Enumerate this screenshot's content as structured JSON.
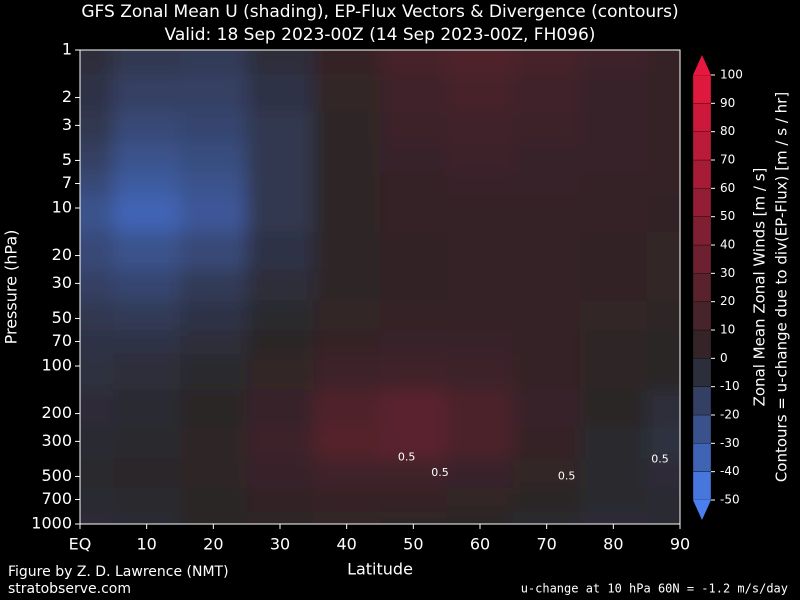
{
  "chart_data": {
    "type": "heatmap",
    "title": "GFS Zonal Mean U (shading), EP-Flux Vectors & Divergence (contours)",
    "subtitle": "Valid: 18 Sep 2023-00Z  (14 Sep 2023-00Z, FH096)",
    "x_label": "Latitude",
    "y_label": "Pressure (hPa)",
    "log_y": true,
    "xlim": [
      0,
      90
    ],
    "xticks": [
      {
        "value": 0,
        "label": "EQ"
      },
      10,
      20,
      30,
      40,
      50,
      60,
      70,
      80,
      90
    ],
    "ylim": [
      1000,
      1
    ],
    "yticks": [
      1,
      2,
      3,
      5,
      7,
      10,
      20,
      30,
      50,
      70,
      100,
      200,
      300,
      500,
      700,
      1000
    ],
    "latitudes": [
      0,
      10,
      20,
      30,
      40,
      50,
      60,
      70,
      80,
      90
    ],
    "levels": [
      1,
      2,
      3,
      5,
      7,
      10,
      20,
      30,
      50,
      70,
      100,
      200,
      300,
      500,
      700,
      1000
    ],
    "u": [
      [
        -5,
        -10,
        -12,
        -5,
        5,
        15,
        20,
        15,
        10,
        5
      ],
      [
        -8,
        -15,
        -15,
        -8,
        3,
        12,
        15,
        12,
        8,
        5
      ],
      [
        -10,
        -20,
        -18,
        -10,
        2,
        10,
        12,
        10,
        8,
        5
      ],
      [
        -15,
        -25,
        -22,
        -10,
        2,
        8,
        10,
        8,
        7,
        5
      ],
      [
        -20,
        -30,
        -25,
        -10,
        2,
        6,
        8,
        7,
        6,
        5
      ],
      [
        -25,
        -35,
        -28,
        -10,
        2,
        5,
        6,
        6,
        5,
        4
      ],
      [
        -20,
        -25,
        -20,
        -8,
        2,
        4,
        5,
        5,
        4,
        3
      ],
      [
        -15,
        -18,
        -12,
        -5,
        2,
        4,
        5,
        5,
        4,
        3
      ],
      [
        -10,
        -12,
        -8,
        -2,
        3,
        5,
        6,
        5,
        3,
        2
      ],
      [
        -8,
        -8,
        -5,
        0,
        5,
        7,
        7,
        5,
        2,
        1
      ],
      [
        -6,
        -5,
        -2,
        3,
        10,
        12,
        10,
        5,
        2,
        0
      ],
      [
        -4,
        -3,
        0,
        8,
        20,
        25,
        18,
        8,
        0,
        -5
      ],
      [
        -3,
        -2,
        2,
        10,
        22,
        25,
        18,
        6,
        -2,
        -6
      ],
      [
        -2,
        -1,
        2,
        8,
        12,
        12,
        8,
        3,
        -2,
        -4
      ],
      [
        -3,
        -2,
        1,
        4,
        6,
        5,
        3,
        1,
        -2,
        -3
      ],
      [
        -4,
        -3,
        0,
        2,
        3,
        2,
        0,
        -2,
        -4,
        -3
      ]
    ],
    "color_neg": "#4a7ff0",
    "color_zero": "#2a2527",
    "color_pos": "#e8173f",
    "colorbar": {
      "label": "Zonal Mean Zonal Winds  [m / s]",
      "label2": "Contours = u-change due to div(EP-Flux) [m / s / hr]",
      "lim": [
        -50,
        100
      ],
      "ticks": [
        -50,
        -40,
        -30,
        -20,
        -10,
        0,
        10,
        20,
        30,
        40,
        50,
        60,
        70,
        80,
        90,
        100
      ]
    },
    "annotations": [
      {
        "text": "0.5",
        "lat": 54,
        "p": 475
      },
      {
        "text": "0.5",
        "lat": 73,
        "p": 500
      },
      {
        "text": "0.5",
        "lat": 87,
        "p": 390
      },
      {
        "text": "0.5",
        "lat": 49,
        "p": 380
      }
    ],
    "credit": "Figure by Z. D. Lawrence (NMT)",
    "website": "stratobserve.com",
    "footer_note": "u-change at 10 hPa 60N = -1.2 m/s/day"
  }
}
